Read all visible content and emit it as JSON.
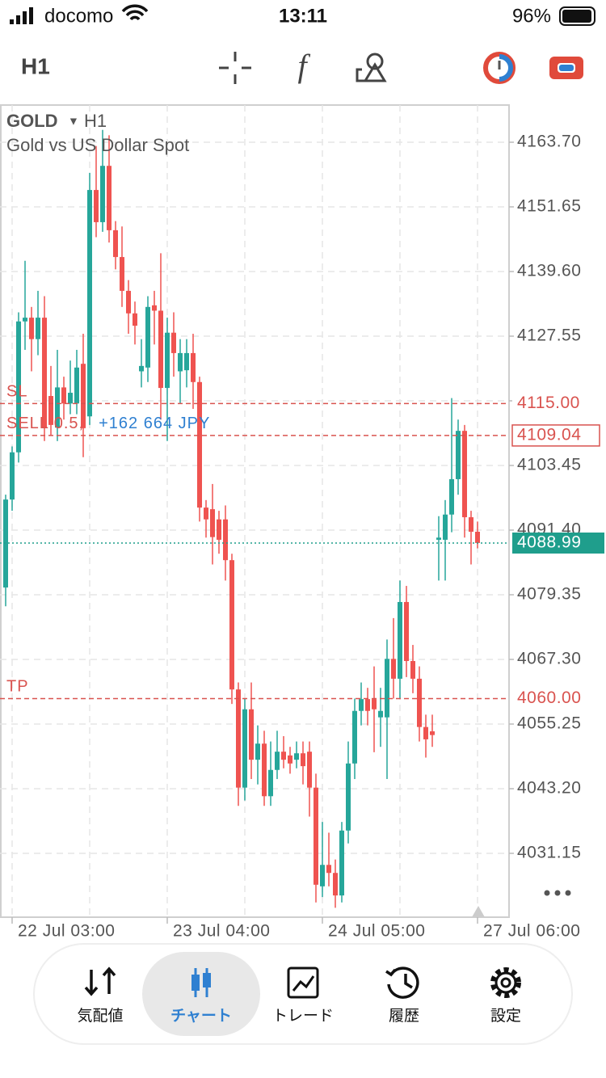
{
  "ui": {
    "carrier": "docomo",
    "time": "13:11",
    "battery": "96%",
    "timeframe": "H1",
    "nav": [
      "気配値",
      "チャート",
      "トレード",
      "履歴",
      "設定"
    ]
  },
  "chart_data": {
    "type": "candlestick",
    "symbol": "GOLD",
    "timeframe": "H1",
    "subtitle": "Gold vs US Dollar Spot",
    "categories": [
      null,
      "22 Jul 03:00",
      null,
      null,
      null,
      null,
      null,
      null,
      null,
      null,
      null,
      null,
      null,
      null,
      null,
      null,
      null,
      null,
      null,
      null,
      null,
      null,
      null,
      null,
      null,
      "23 Jul 04:00",
      null,
      null,
      null,
      null,
      null,
      null,
      null,
      null,
      null,
      null,
      null,
      null,
      null,
      null,
      null,
      null,
      null,
      null,
      null,
      null,
      null,
      null,
      null,
      "24 Jul 05:00",
      null,
      null,
      null,
      null,
      null,
      null,
      null,
      null,
      null,
      null,
      null,
      null,
      null,
      null,
      null,
      null,
      null,
      null,
      null,
      null,
      null,
      null,
      null,
      "27 Jul 06:00"
    ],
    "open": [
      4080.7,
      4097.1,
      4105.9,
      4130.3,
      4131,
      4127,
      4131,
      4116.4,
      4110.5,
      4118,
      4115,
      4115,
      4122.4,
      4112.6,
      4154.8,
      4148.8,
      4159.3,
      4147.3,
      4142.3,
      4136,
      4131.8,
      4121,
      4121.7,
      4133.3,
      4132.3,
      4117.9,
      4128.2,
      4121,
      4121.2,
      4124.4,
      4119,
      4095.6,
      4095.3,
      4093.4,
      4093.4,
      4085.8,
      4061.7,
      4043.4,
      4058,
      4048.6,
      4051.6,
      4041.8,
      4046.7,
      4050.1,
      4049.4,
      4048.6,
      4049.8,
      4050.1,
      4043.4,
      4025,
      4029,
      4027.5,
      4023.3,
      4035.4,
      4047.9,
      4057.7,
      4059.9,
      4059.9,
      4056.5,
      4056.5,
      4067.4,
      4063.7,
      4078,
      4067,
      4063.7,
      4054.7,
      4053.9,
      4089.6,
      4089.6,
      4094.3,
      4100.9,
      4109.9,
      4093.8,
      4091.1
    ],
    "high": [
      4098,
      4107,
      4132,
      4141.6,
      4133,
      4136,
      4135,
      4122,
      4125,
      4120,
      4123,
      4125,
      4128,
      4158,
      4163,
      4166,
      4165,
      4149,
      4148,
      4138,
      4134,
      4127,
      4135,
      4136,
      4143,
      4131,
      4132,
      4127,
      4127,
      4128,
      4120,
      4097,
      4100,
      4095,
      4096,
      4087,
      4063,
      4060,
      4063,
      4055,
      4054,
      4052,
      4054,
      4053,
      4051,
      4052,
      4052,
      4052,
      4046,
      4037,
      4035,
      4030,
      4037,
      4052,
      4060,
      4063,
      4062,
      4066,
      4062,
      4071,
      4075,
      4082,
      4081,
      4070,
      4066,
      4057,
      4057,
      4094,
      4097,
      4116,
      4112,
      4111,
      4095,
      4093
    ],
    "low": [
      4077.2,
      4095,
      4104,
      4125,
      4121,
      4124,
      4108,
      4109,
      4108,
      4112,
      4113,
      4113,
      4105,
      4111,
      4146,
      4147,
      4145,
      4140,
      4133,
      4128,
      4126,
      4118,
      4119,
      4126,
      4112,
      4108,
      4120,
      4115,
      4118,
      4114,
      4093,
      4090,
      4085,
      4087,
      4082,
      4059,
      4040,
      4041,
      4045,
      4044,
      4040,
      4040,
      4045,
      4047,
      4046,
      4047,
      4044,
      4038,
      4022,
      4023,
      4025,
      4021,
      4022,
      4033,
      4045,
      4055,
      4055,
      4050,
      4051,
      4045,
      4060,
      4060,
      4064,
      4061,
      4052,
      4049,
      4051,
      4082,
      4082,
      4091,
      4098,
      4090,
      4085,
      4088
    ],
    "close": [
      4097.1,
      4105.9,
      4130.3,
      4131,
      4127,
      4131,
      4110.4,
      4111,
      4118,
      4115,
      4117,
      4121.7,
      4110.4,
      4154.8,
      4148.8,
      4159.3,
      4147.3,
      4142.3,
      4136,
      4131.8,
      4129.5,
      4122,
      4133,
      4132.3,
      4117.9,
      4128.2,
      4124.4,
      4124.4,
      4124.4,
      4119,
      4095.6,
      4093.4,
      4090.1,
      4089.6,
      4085.8,
      4061.7,
      4043.4,
      4058,
      4048.6,
      4051.6,
      4041.8,
      4046.7,
      4050.1,
      4048.6,
      4047.9,
      4049.8,
      4047.4,
      4043.4,
      4025.3,
      4029,
      4027.5,
      4023.3,
      4035.4,
      4047.9,
      4057.7,
      4059.9,
      4057.7,
      4058,
      4057.7,
      4067.4,
      4063.7,
      4078,
      4067,
      4063.7,
      4054.7,
      4052.4,
      4053.2,
      4090,
      4094.3,
      4100.9,
      4109.9,
      4093.8,
      4091.1,
      4089
    ],
    "up_color": "#26a69a",
    "down_color": "#ef5350",
    "ylim": [
      4019.25,
      4170.63
    ],
    "yticks": [
      {
        "value": 4163.7,
        "label": "4163.70"
      },
      4151.65,
      {
        "value": 4139.6,
        "label": "4139.60"
      },
      4127.55,
      4115.5,
      4103.45,
      {
        "value": 4091.4,
        "label": "4091.40"
      },
      4079.35,
      {
        "value": 4067.3,
        "label": "4067.30"
      },
      4055.25,
      {
        "value": 4043.2,
        "label": "4043.20"
      },
      4031.15
    ],
    "grid": true,
    "price_lines": [
      {
        "name": "SL",
        "value": 4115,
        "label": "4115.00",
        "color": "#d9534f"
      },
      {
        "name": "SELL 0.5,",
        "profit": "+162 664 JPY",
        "value": 4109.04,
        "label": "4109.04",
        "color": "#d9534f"
      },
      {
        "name": "TP",
        "value": 4060,
        "label": "4060.00",
        "color": "#d9534f"
      }
    ],
    "current_price": {
      "value": 4088.99,
      "label": "4088.99",
      "color": "#1f9e8c"
    }
  }
}
